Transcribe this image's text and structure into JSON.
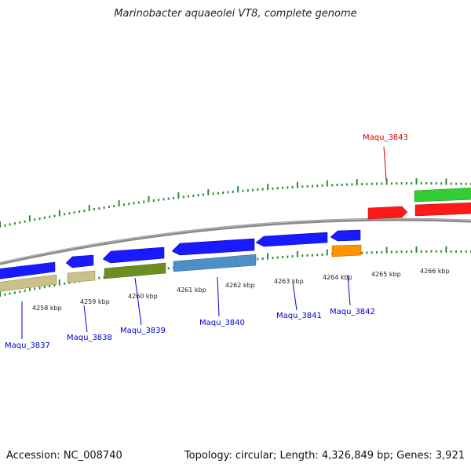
{
  "title": "Marinobacter aquaeolei VT8, complete genome",
  "footer": {
    "accession": "Accession: NC_008740",
    "summary": "Topology: circular; Length: 4,326,849 bp; Genes: 3,921"
  },
  "scale_labels": [
    "4258 kbp",
    "4259 kbp",
    "4260 kbp",
    "4261 kbp",
    "4262 kbp",
    "4263 kbp",
    "4264 kbp",
    "4265 kbp",
    "4266 kbp"
  ],
  "genes": [
    {
      "name": "Maqu_3837",
      "label_color": "#0000cc"
    },
    {
      "name": "Maqu_3838",
      "label_color": "#0000cc"
    },
    {
      "name": "Maqu_3839",
      "label_color": "#0000cc"
    },
    {
      "name": "Maqu_3840",
      "label_color": "#0000cc"
    },
    {
      "name": "Maqu_3841",
      "label_color": "#0000cc"
    },
    {
      "name": "Maqu_3842",
      "label_color": "#0000cc"
    },
    {
      "name": "Maqu_3843",
      "label_color": "#cc0000"
    }
  ],
  "colors": {
    "cds_blue": "#1a1aff",
    "khaki": "#c9c08a",
    "olive": "#6b8e23",
    "steelblue": "#4f8fc7",
    "orange": "#ff9000",
    "red": "#ff1a1a",
    "green": "#33cc33",
    "backbone": "#7a7a7a",
    "tick": "#2e8b2e"
  }
}
